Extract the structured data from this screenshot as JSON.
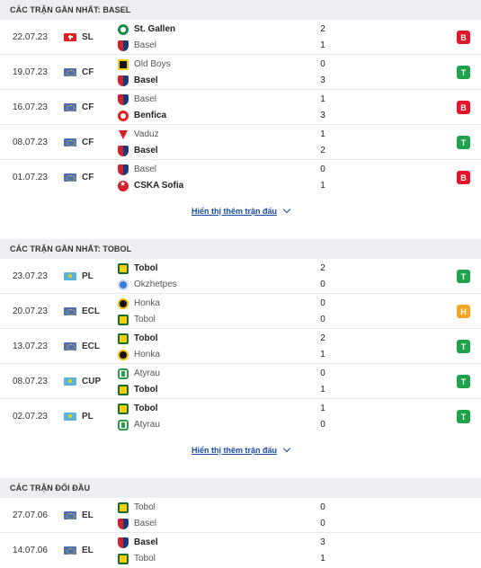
{
  "sections": [
    {
      "title": "CÁC TRẬN GẦN NHẤT: BASEL",
      "more_label": "Hiển thị thêm trận đấu",
      "matches": [
        {
          "date": "22.07.23",
          "flag": "ch",
          "comp": "SL",
          "home": {
            "name": "St. Gallen",
            "logo": "stgallen",
            "score": "2",
            "win": true
          },
          "away": {
            "name": "Basel",
            "logo": "basel",
            "score": "1",
            "win": false
          },
          "result": "B",
          "result_color": "#e3152b"
        },
        {
          "date": "19.07.23",
          "flag": "eu",
          "comp": "CF",
          "home": {
            "name": "Old Boys",
            "logo": "oldboys",
            "score": "0",
            "win": false
          },
          "away": {
            "name": "Basel",
            "logo": "basel",
            "score": "3",
            "win": true
          },
          "result": "T",
          "result_color": "#1fa34a"
        },
        {
          "date": "16.07.23",
          "flag": "eu",
          "comp": "CF",
          "home": {
            "name": "Basel",
            "logo": "basel",
            "score": "1",
            "win": false
          },
          "away": {
            "name": "Benfica",
            "logo": "benfica",
            "score": "3",
            "win": true
          },
          "result": "B",
          "result_color": "#e3152b"
        },
        {
          "date": "08.07.23",
          "flag": "eu",
          "comp": "CF",
          "home": {
            "name": "Vaduz",
            "logo": "vaduz",
            "score": "1",
            "win": false
          },
          "away": {
            "name": "Basel",
            "logo": "basel",
            "score": "2",
            "win": true
          },
          "result": "T",
          "result_color": "#1fa34a"
        },
        {
          "date": "01.07.23",
          "flag": "eu",
          "comp": "CF",
          "home": {
            "name": "Basel",
            "logo": "basel",
            "score": "0",
            "win": false
          },
          "away": {
            "name": "CSKA Sofia",
            "logo": "cska",
            "score": "1",
            "win": true
          },
          "result": "B",
          "result_color": "#e3152b"
        }
      ]
    },
    {
      "title": "CÁC TRẬN GẦN NHẤT: TOBOL",
      "more_label": "Hiển thị thêm trận đấu",
      "matches": [
        {
          "date": "23.07.23",
          "flag": "kz",
          "comp": "PL",
          "home": {
            "name": "Tobol",
            "logo": "tobol",
            "score": "2",
            "win": true
          },
          "away": {
            "name": "Okzhetpes",
            "logo": "okzhetpes",
            "score": "0",
            "win": false
          },
          "result": "T",
          "result_color": "#1fa34a"
        },
        {
          "date": "20.07.23",
          "flag": "eu",
          "comp": "ECL",
          "home": {
            "name": "Honka",
            "logo": "honka",
            "score": "0",
            "win": false
          },
          "away": {
            "name": "Tobol",
            "logo": "tobol",
            "score": "0",
            "win": false
          },
          "result": "H",
          "result_color": "#f5a623"
        },
        {
          "date": "13.07.23",
          "flag": "eu",
          "comp": "ECL",
          "home": {
            "name": "Tobol",
            "logo": "tobol",
            "score": "2",
            "win": true
          },
          "away": {
            "name": "Honka",
            "logo": "honka",
            "score": "1",
            "win": false
          },
          "result": "T",
          "result_color": "#1fa34a"
        },
        {
          "date": "08.07.23",
          "flag": "kz",
          "comp": "CUP",
          "home": {
            "name": "Atyrau",
            "logo": "atyrau",
            "score": "0",
            "win": false
          },
          "away": {
            "name": "Tobol",
            "logo": "tobol",
            "score": "1",
            "win": true
          },
          "result": "T",
          "result_color": "#1fa34a"
        },
        {
          "date": "02.07.23",
          "flag": "kz",
          "comp": "PL",
          "home": {
            "name": "Tobol",
            "logo": "tobol",
            "score": "1",
            "win": true
          },
          "away": {
            "name": "Atyrau",
            "logo": "atyrau",
            "score": "0",
            "win": false
          },
          "result": "T",
          "result_color": "#1fa34a"
        }
      ]
    },
    {
      "title": "CÁC TRẬN ĐỐI ĐẦU",
      "matches": [
        {
          "date": "27.07.06",
          "flag": "eu",
          "comp": "EL",
          "home": {
            "name": "Tobol",
            "logo": "tobol",
            "score": "0",
            "win": false
          },
          "away": {
            "name": "Basel",
            "logo": "basel",
            "score": "0",
            "win": false
          }
        },
        {
          "date": "14.07.06",
          "flag": "eu",
          "comp": "EL",
          "home": {
            "name": "Basel",
            "logo": "basel",
            "score": "3",
            "win": true
          },
          "away": {
            "name": "Tobol",
            "logo": "tobol",
            "score": "1",
            "win": false
          }
        }
      ]
    }
  ]
}
